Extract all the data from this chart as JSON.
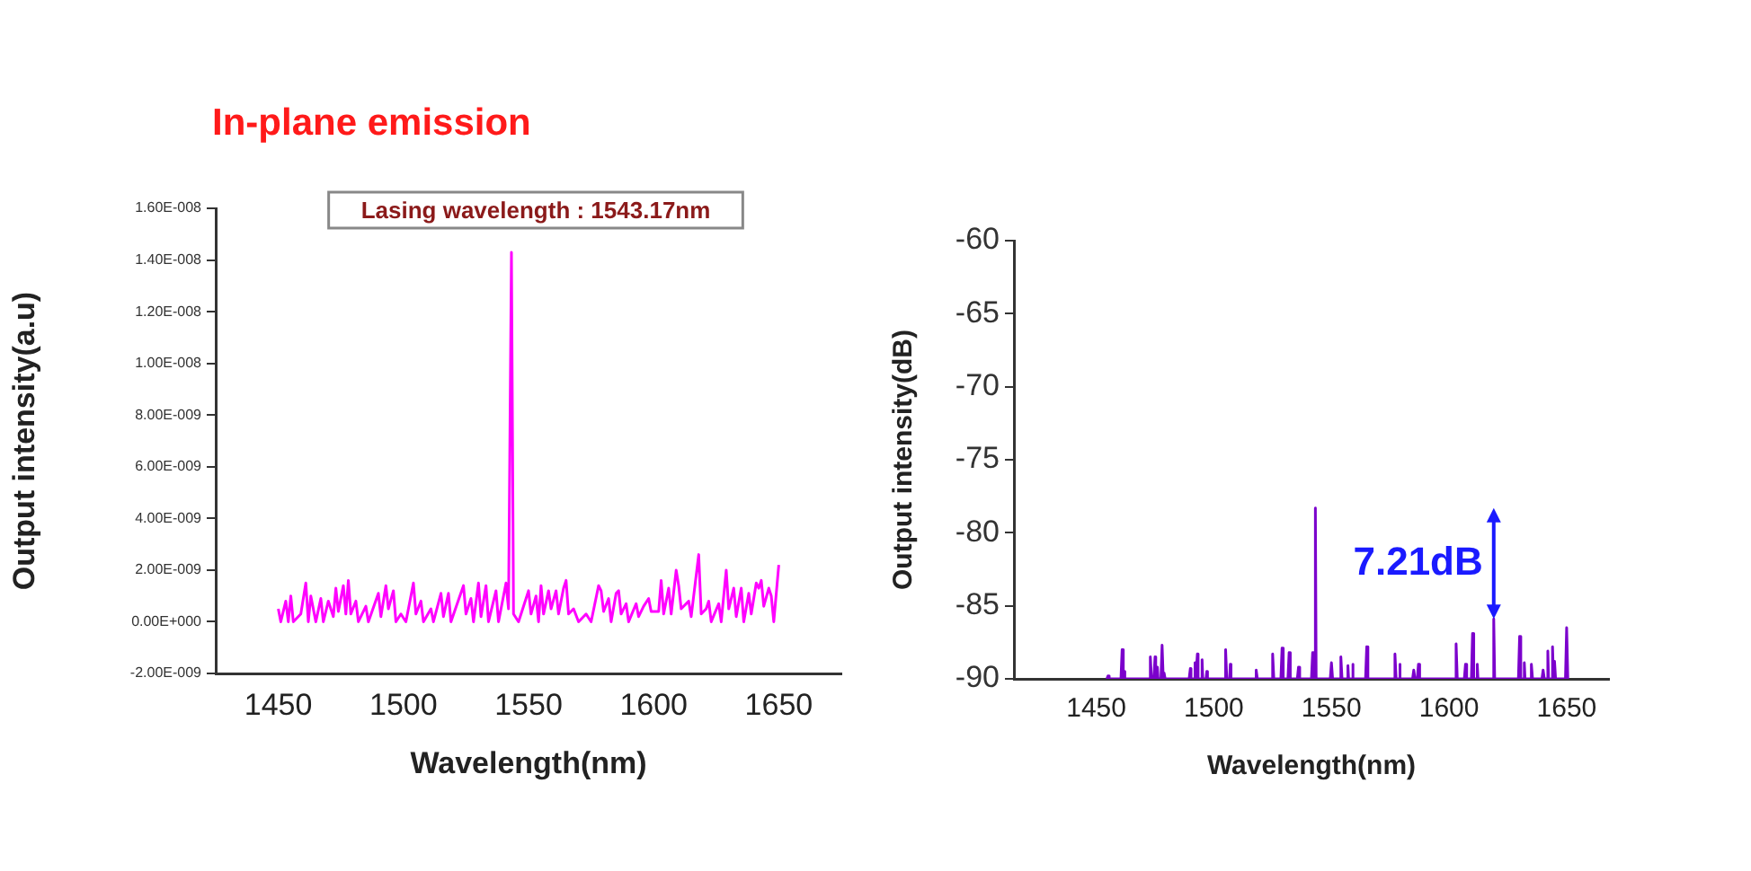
{
  "chart_data": [
    {
      "type": "line",
      "title": "In-plane emission",
      "xlabel": "Wavelength(nm)",
      "ylabel": "Output intensity(a.u)",
      "annotations": [
        "Lasing wavelength : 1543.17nm"
      ],
      "xlim": [
        1425,
        1675
      ],
      "xticks": [
        1450,
        1500,
        1550,
        1600,
        1650
      ],
      "ylim": [
        -2e-09,
        1.6e-08
      ],
      "yticks": [
        {
          "value": -2e-09,
          "label": "-2.00E-009"
        },
        {
          "value": 0,
          "label": "0.00E+000"
        },
        {
          "value": 2e-09,
          "label": "2.00E-009"
        },
        {
          "value": 4e-09,
          "label": "4.00E-009"
        },
        {
          "value": 6e-09,
          "label": "6.00E-009"
        },
        {
          "value": 8e-09,
          "label": "8.00E-009"
        },
        {
          "value": 1e-08,
          "label": "1.00E-008"
        },
        {
          "value": 1.2e-08,
          "label": "1.20E-008"
        },
        {
          "value": 1.4e-08,
          "label": "1.40E-008"
        },
        {
          "value": 1.6e-08,
          "label": "1.60E-008"
        }
      ],
      "grid": false,
      "legend": false,
      "marker": "none",
      "series": [
        {
          "color": "#ff00ff",
          "x": [
            1450,
            1451,
            1453,
            1454,
            1455,
            1456,
            1459,
            1461,
            1462,
            1463,
            1465,
            1467,
            1468,
            1470,
            1472,
            1473,
            1474,
            1476,
            1477,
            1478,
            1479,
            1481,
            1482,
            1485,
            1486,
            1490,
            1491,
            1493,
            1494,
            1496,
            1497,
            1499,
            1501,
            1504,
            1505,
            1507,
            1508,
            1511,
            1512,
            1515,
            1516,
            1518,
            1519,
            1524,
            1525,
            1527,
            1528,
            1530,
            1531,
            1533,
            1534,
            1537,
            1538,
            1541,
            1542,
            1543.17,
            1544,
            1546,
            1548,
            1550,
            1551,
            1553,
            1554,
            1555,
            1556,
            1558,
            1559,
            1561,
            1562,
            1564,
            1565,
            1566,
            1568,
            1570,
            1573,
            1575,
            1578,
            1579,
            1580,
            1582,
            1583,
            1585,
            1586,
            1587,
            1589,
            1590,
            1593,
            1594,
            1596,
            1598,
            1599,
            1602,
            1603,
            1604,
            1606,
            1607,
            1609,
            1610,
            1611,
            1614,
            1615,
            1618,
            1619,
            1621,
            1622,
            1623,
            1626,
            1627,
            1629,
            1630,
            1632,
            1633,
            1635,
            1636,
            1638,
            1639,
            1641,
            1642,
            1643,
            1644,
            1646,
            1647,
            1648,
            1650
          ],
          "values": [
            5e-10,
            0,
            8e-10,
            0,
            1e-09,
            0,
            3e-10,
            1.5e-09,
            0,
            1e-09,
            0,
            9e-10,
            0,
            8e-10,
            2e-10,
            1.3e-09,
            4e-10,
            1.4e-09,
            3e-10,
            1.6e-09,
            3e-10,
            8e-10,
            0,
            6e-10,
            0,
            1.1e-09,
            2e-10,
            1.4e-09,
            5e-10,
            1.2e-09,
            0,
            3e-10,
            0,
            1.5e-09,
            3e-10,
            8e-10,
            0,
            5e-10,
            0,
            1.1e-09,
            2e-10,
            1.1e-09,
            0,
            1.4e-09,
            3e-10,
            9e-10,
            0,
            1.5e-09,
            2e-10,
            1.4e-09,
            0,
            1.2e-09,
            0,
            1.5e-09,
            5e-10,
            1.43e-08,
            3e-10,
            0,
            6e-10,
            1.2e-09,
            3e-10,
            1e-09,
            0,
            1.4e-09,
            3e-10,
            1.2e-09,
            5e-10,
            1.2e-09,
            3e-10,
            1.3e-09,
            1.6e-09,
            3e-10,
            5e-10,
            0,
            3e-10,
            0,
            1.4e-09,
            1.2e-09,
            4e-10,
            9e-10,
            0,
            1.1e-09,
            1.2e-09,
            3e-10,
            7e-10,
            0,
            7e-10,
            2e-10,
            6e-10,
            9e-10,
            4e-10,
            4e-10,
            1.6e-09,
            3e-10,
            1.3e-09,
            3e-10,
            2e-09,
            1.4e-09,
            5e-10,
            8e-10,
            2e-10,
            2.6e-09,
            3e-10,
            5e-10,
            8e-10,
            0,
            7e-10,
            0,
            2e-09,
            5e-10,
            1.3e-09,
            2e-10,
            1.3e-09,
            0,
            1.1e-09,
            3e-10,
            1.5e-09,
            1.3e-09,
            1.6e-09,
            6e-10,
            1.3e-09,
            1e-09,
            0,
            2.2e-09
          ]
        }
      ]
    },
    {
      "type": "line",
      "xlabel": "Wavelength(nm)",
      "ylabel": "Output intensity(dB)",
      "annotations": [
        {
          "text": "7.21dB",
          "x": 1619,
          "y": -85.9
        }
      ],
      "xlim": [
        1415,
        1668
      ],
      "xticks": [
        1450,
        1500,
        1550,
        1600,
        1650
      ],
      "ylim": [
        -90,
        -60
      ],
      "yticks": [
        -90,
        -85,
        -80,
        -75,
        -70,
        -65,
        -60
      ],
      "grid": false,
      "legend": false,
      "marker": "none",
      "series": [
        {
          "color": "#7b00cc",
          "x": [
            1454.5,
            1455,
            1455.5,
            1460.5,
            1461,
            1461.5,
            1461.7,
            1462,
            1462.3,
            1472.5,
            1473,
            1473.5,
            1474.5,
            1475,
            1475.3,
            1475.7,
            1476,
            1476.3,
            1477.5,
            1478,
            1478.5,
            1478.7,
            1479,
            1479.3,
            1489.5,
            1490,
            1490.3,
            1491.7,
            1492,
            1492.3,
            1492.7,
            1493,
            1493.3,
            1494.7,
            1495,
            1495.3,
            1496.7,
            1497,
            1497.3,
            1504.5,
            1505,
            1505.5,
            1506.7,
            1507,
            1507.3,
            1517.5,
            1518,
            1518.5,
            1524.5,
            1525,
            1525.5,
            1528.5,
            1529,
            1529.5,
            1531.5,
            1532,
            1532.5,
            1535.5,
            1536,
            1536.5,
            1541.5,
            1542,
            1542.5,
            1542.8,
            1543.17,
            1543.5,
            1549.5,
            1550,
            1550.5,
            1553.5,
            1554,
            1554.5,
            1556.7,
            1557,
            1557.3,
            1558.7,
            1559,
            1559.3,
            1564.5,
            1565,
            1565.5,
            1576.5,
            1577,
            1577.5,
            1578.7,
            1579,
            1579.3,
            1584.5,
            1585,
            1585.5,
            1586.5,
            1587,
            1587.5,
            1602.5,
            1603,
            1603.5,
            1606.5,
            1607,
            1607.5,
            1609.5,
            1610,
            1610.5,
            1611.7,
            1612,
            1612.3,
            1618.6,
            1619,
            1619.4,
            1629.5,
            1630,
            1630.5,
            1631.7,
            1632,
            1632.3,
            1634.5,
            1635,
            1635.5,
            1639.5,
            1640,
            1640.5,
            1641.7,
            1642,
            1642.3,
            1643.6,
            1644,
            1644.4,
            1644.7,
            1645,
            1645.3,
            1649.5,
            1650,
            1650.5
          ],
          "values": [
            -90,
            -89.8,
            -90,
            -90,
            -88,
            -90,
            -90,
            -89.5,
            -90,
            -90,
            -88.5,
            -90,
            -90,
            -88.5,
            -90,
            -90,
            -89.2,
            -90,
            -90,
            -87.7,
            -90,
            -90,
            -89.6,
            -90,
            -90,
            -89.3,
            -90,
            -90,
            -88.9,
            -90,
            -90,
            -88.3,
            -90,
            -90,
            -88.7,
            -90,
            -90,
            -89.5,
            -90,
            -90,
            -88,
            -90,
            -90,
            -89,
            -90,
            -90,
            -89.4,
            -90,
            -90,
            -88.3,
            -90,
            -90,
            -87.9,
            -90,
            -90,
            -88.2,
            -90,
            -90,
            -89.2,
            -90,
            -90,
            -88.2,
            -90,
            -90,
            -78.3,
            -90,
            -90,
            -88.9,
            -90,
            -90,
            -88.5,
            -90,
            -90,
            -89.1,
            -90,
            -90,
            -89,
            -90,
            -90,
            -87.8,
            -90,
            -90,
            -88.3,
            -90,
            -90,
            -89,
            -90,
            -90,
            -89.4,
            -90,
            -90,
            -89,
            -90,
            -90,
            -87.6,
            -90,
            -90,
            -89,
            -90,
            -90,
            -86.9,
            -90,
            -90,
            -89,
            -90,
            -90,
            -85.9,
            -90,
            -90,
            -87.1,
            -90,
            -90,
            -88.9,
            -90,
            -90,
            -89,
            -90,
            -90,
            -89.4,
            -90,
            -90,
            -88.1,
            -90,
            -90,
            -87.8,
            -90,
            -90,
            -88.8,
            -90,
            -90,
            -86.5,
            -90
          ]
        }
      ]
    }
  ]
}
